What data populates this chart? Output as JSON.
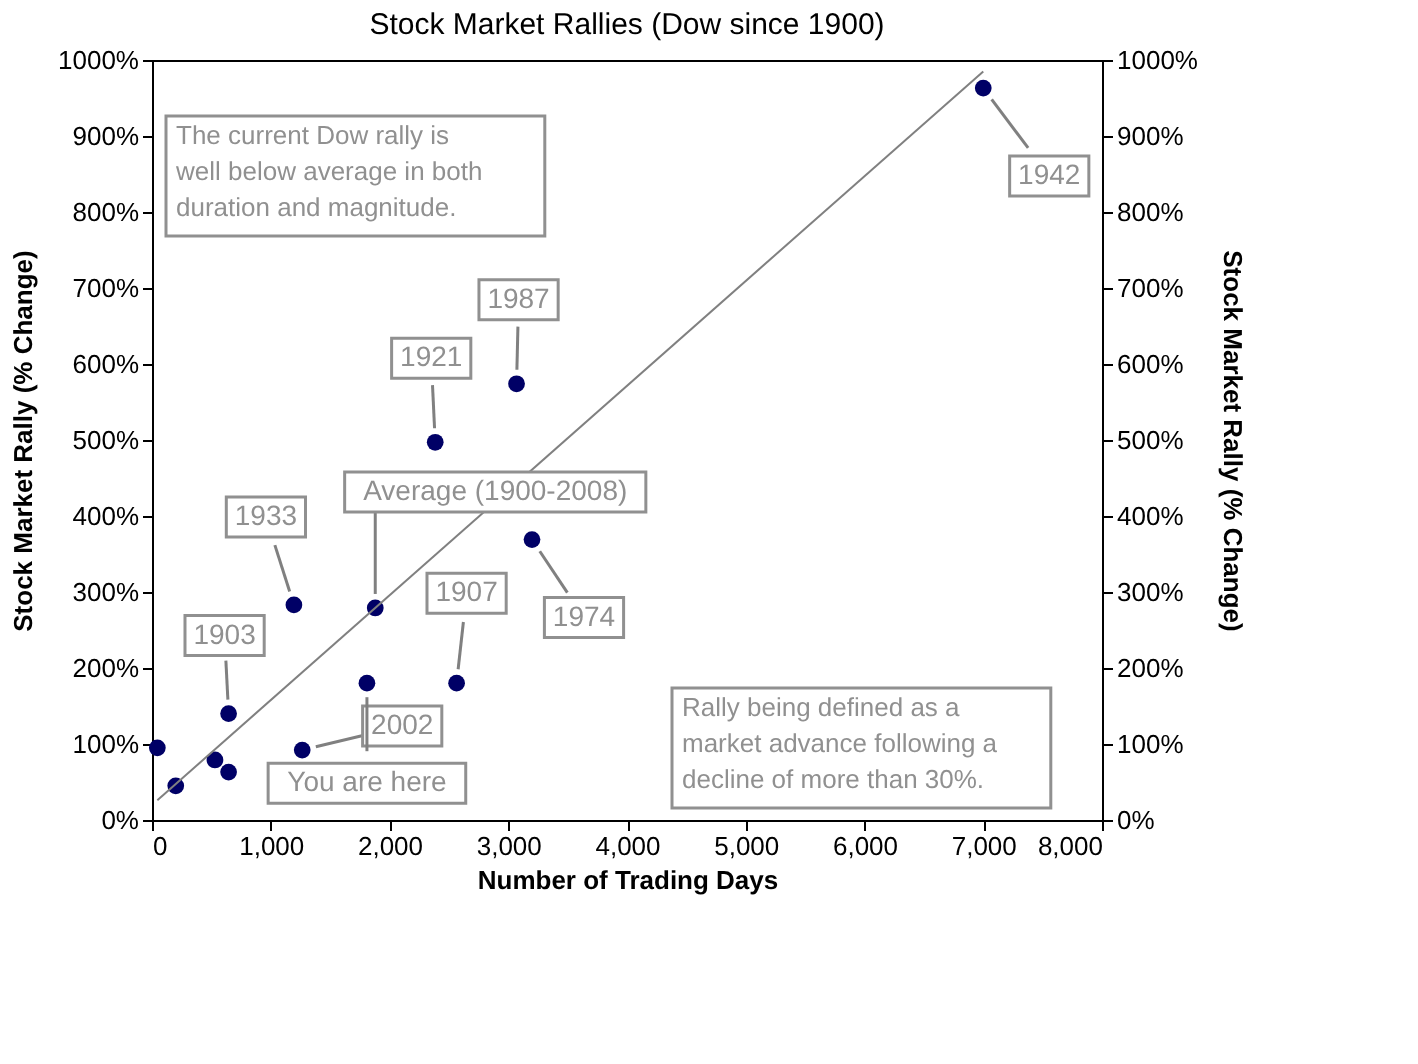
{
  "chart_data": {
    "type": "scatter",
    "title": "Stock Market Rallies (Dow since 1900)",
    "xlabel": "Number of Trading Days",
    "ylabel": "Stock Market Rally (% Change)",
    "y2label": "Stock Market Rally (% Change)",
    "xlim": [
      0,
      8000
    ],
    "xticks": [
      0,
      {
        "value": 1000,
        "label": "1,000"
      },
      {
        "value": 2000,
        "label": "2,000"
      },
      {
        "value": 3000,
        "label": "3,000"
      },
      {
        "value": 4000,
        "label": "4,000"
      },
      {
        "value": 5000,
        "label": "5,000"
      },
      {
        "value": 6000,
        "label": "6,000"
      },
      {
        "value": 7000,
        "label": "7,000"
      },
      {
        "value": 8000,
        "label": "8,000"
      }
    ],
    "ylim": [
      0,
      1000
    ],
    "yticks": [
      {
        "value": 0,
        "label": "0%"
      },
      {
        "value": 100,
        "label": "100%"
      },
      {
        "value": 200,
        "label": "200%"
      },
      {
        "value": 300,
        "label": "300%"
      },
      {
        "value": 400,
        "label": "400%"
      },
      {
        "value": 500,
        "label": "500%"
      },
      {
        "value": 600,
        "label": "600%"
      },
      {
        "value": 700,
        "label": "700%"
      },
      {
        "value": 800,
        "label": "800%"
      },
      {
        "value": 900,
        "label": "900%"
      },
      {
        "value": 1000,
        "label": "1000%"
      }
    ],
    "y2lim": [
      0,
      1000
    ],
    "y2ticks": [
      {
        "value": 0,
        "label": "0%"
      },
      {
        "value": 100,
        "label": "100%"
      },
      {
        "value": 200,
        "label": "200%"
      },
      {
        "value": 300,
        "label": "300%"
      },
      {
        "value": 400,
        "label": "400%"
      },
      {
        "value": 500,
        "label": "500%"
      },
      {
        "value": 600,
        "label": "600%"
      },
      {
        "value": 700,
        "label": "700%"
      },
      {
        "value": 800,
        "label": "800%"
      },
      {
        "value": 900,
        "label": "900%"
      },
      {
        "value": 1000,
        "label": "1000%"
      }
    ],
    "grid": false,
    "series": [
      {
        "color": "#000066",
        "marker": "circle",
        "x": [
          45,
          200,
          530,
          645,
          645,
          1195,
          1265,
          1810,
          2565,
          2385,
          3200,
          3070,
          7000
        ],
        "values": [
          95,
          45,
          79,
          63,
          140,
          283,
          92,
          180,
          180,
          497,
          369,
          574,
          963
        ]
      },
      {
        "color": "#000066",
        "marker": "circle",
        "x": [
          1880
        ],
        "values": [
          279
        ]
      },
      {
        "type": "line",
        "color": "#808080",
        "line_style": "solid",
        "x": [
          45,
          7000
        ],
        "values": [
          26,
          985
        ]
      }
    ],
    "annotations": [
      {
        "text": "1942",
        "x": 7000,
        "y": 963
      },
      {
        "text": "1987",
        "x": 3070,
        "y": 574
      },
      {
        "text": "1921",
        "x": 2385,
        "y": 497
      },
      {
        "text": "1933",
        "x": 1195,
        "y": 283
      },
      {
        "text": "1903",
        "x": 645,
        "y": 140
      },
      {
        "text": "1907",
        "x": 2565,
        "y": 180
      },
      {
        "text": "1974",
        "x": 3200,
        "y": 369
      },
      {
        "text": "2002",
        "x": 1265,
        "y": 92
      },
      {
        "text": "Average (1900-2008)",
        "x": 1880,
        "y": 279
      },
      {
        "text": "You are here",
        "x": 1810,
        "y": 180
      },
      "The current Dow rally is\nwell below average in both\nduration and magnitude.",
      "Rally being defined as a\nmarket advance following a\ndecline of more than 30%."
    ]
  }
}
